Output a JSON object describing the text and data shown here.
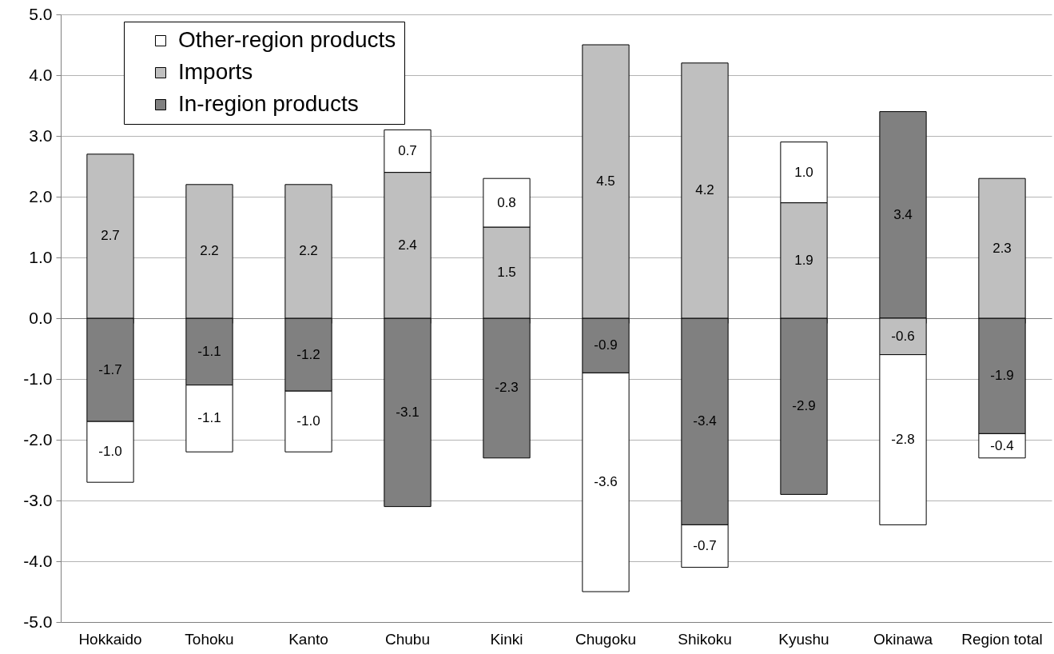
{
  "chart_data": {
    "type": "bar",
    "stacked": true,
    "grid": "y",
    "legend": "top left",
    "categories": [
      "Hokkaido",
      "Tohoku",
      "Kanto",
      "Chubu",
      "Kinki",
      "Chugoku",
      "Shikoku",
      "Kyushu",
      "Okinawa",
      "Region total"
    ],
    "series": [
      {
        "name": "In-region products",
        "color": "#808080",
        "values": [
          -1.7,
          -1.1,
          -1.2,
          -3.1,
          -2.3,
          -0.9,
          -3.4,
          -2.9,
          3.4,
          -1.9
        ],
        "value_labels": [
          "-1.7",
          "-1.1",
          "-1.2",
          "-3.1",
          "-2.3",
          "-0.9",
          "-3.4",
          "-2.9",
          "3.4",
          "-1.9"
        ]
      },
      {
        "name": "Imports",
        "color": "#bfbfbf",
        "values": [
          2.7,
          2.2,
          2.2,
          2.4,
          1.5,
          4.5,
          4.2,
          1.9,
          -0.6,
          2.3
        ],
        "value_labels": [
          "2.7",
          "2.2",
          "2.2",
          "2.4",
          "1.5",
          "4.5",
          "4.2",
          "1.9",
          "-0.6",
          "2.3"
        ]
      },
      {
        "name": "Other-region products",
        "color": "#ffffff",
        "values": [
          -1.0,
          -1.1,
          -1.0,
          0.7,
          0.8,
          -3.6,
          -0.7,
          1.0,
          -2.8,
          -0.4
        ],
        "value_labels": [
          "-1.0",
          "-1.1",
          "-1.0",
          "0.7",
          "0.8",
          "-3.6",
          "-0.7",
          "1.0",
          "-2.8",
          "-0.4"
        ]
      }
    ],
    "ylim": [
      -5,
      5
    ],
    "yticks": [
      {
        "value": -5,
        "label": "-5.0"
      },
      {
        "value": -4,
        "label": "-4.0"
      },
      {
        "value": -3,
        "label": "-3.0"
      },
      {
        "value": -2,
        "label": "-2.0"
      },
      {
        "value": -1,
        "label": "-1.0"
      },
      {
        "value": 0,
        "label": "0.0"
      },
      {
        "value": 1,
        "label": "1.0"
      },
      {
        "value": 2,
        "label": "2.0"
      },
      {
        "value": 3,
        "label": "3.0"
      },
      {
        "value": 4,
        "label": "4.0"
      },
      {
        "value": 5,
        "label": "5.0"
      }
    ]
  }
}
